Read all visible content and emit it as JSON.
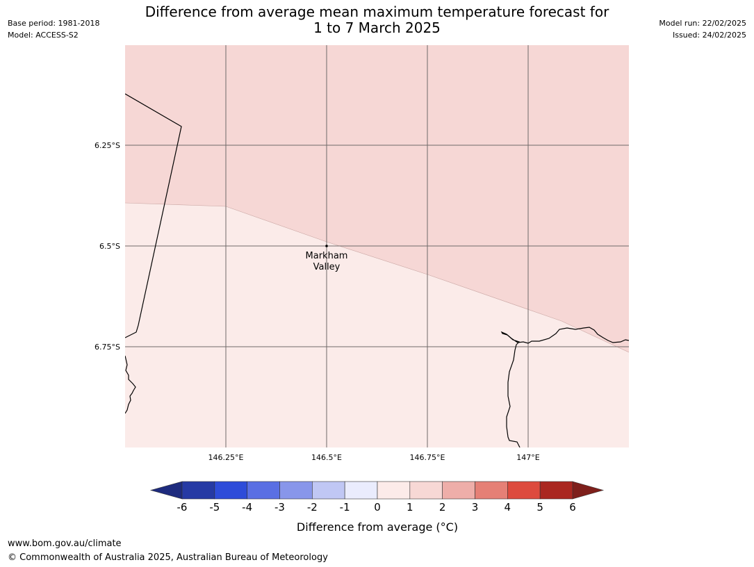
{
  "header": {
    "base_period": "Base period: 1981-2018",
    "model": "Model: ACCESS-S2",
    "model_run": "Model run: 22/02/2025",
    "issued": "Issued: 24/02/2025",
    "title_line1": "Difference from average mean maximum temperature forecast for",
    "title_line2": "1 to 7 March 2025"
  },
  "map": {
    "lat_ticks": [
      {
        "value": -6.25,
        "label": "6.25°S"
      },
      {
        "value": -6.5,
        "label": "6.5°S"
      },
      {
        "value": -6.75,
        "label": "6.75°S"
      }
    ],
    "lon_ticks": [
      {
        "value": 146.25,
        "label": "146.25°E"
      },
      {
        "value": 146.5,
        "label": "146.5°E"
      },
      {
        "value": 146.75,
        "label": "146.75°E"
      },
      {
        "value": 147.0,
        "label": "147°E"
      }
    ],
    "place": {
      "name_line1": "Markham",
      "name_line2": "Valley",
      "lat": -6.5,
      "lon": 146.5
    },
    "regions": [
      {
        "range": "1 to 2",
        "color": "#f6d7d5"
      },
      {
        "range": "0 to 1",
        "color": "#fbebe9"
      }
    ],
    "grid": true
  },
  "colorbar": {
    "label": "Difference from average (°C)",
    "ticks": [
      "-6",
      "-5",
      "-4",
      "-3",
      "-2",
      "-1",
      "0",
      "1",
      "2",
      "3",
      "4",
      "5",
      "6"
    ],
    "colors": [
      "#263aa4",
      "#2e4cd9",
      "#5a6fe3",
      "#8896ea",
      "#c0c7f4",
      "#eaecfd",
      "#fcebe9",
      "#f7d8d5",
      "#eeaea9",
      "#e58076",
      "#dd4b3e",
      "#aa2720"
    ],
    "under_color": "#1e2b7e",
    "over_color": "#7e1f1b"
  },
  "footer": {
    "url": "www.bom.gov.au/climate",
    "copyright": "© Commonwealth of Australia 2025, Australian Bureau of Meteorology"
  }
}
